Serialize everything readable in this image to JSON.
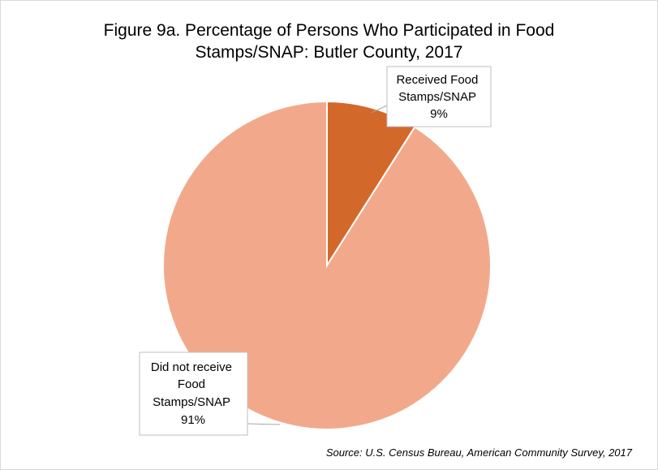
{
  "chart_data": {
    "type": "pie",
    "title_lines": [
      "Figure 9a. Percentage of Persons Who Participated in Food",
      "Stamps/SNAP: Butler County, 2017"
    ],
    "slices": [
      {
        "label_lines": [
          "Received Food",
          "Stamps/SNAP"
        ],
        "value": 9,
        "value_label": "9%",
        "color": "#d2692b"
      },
      {
        "label_lines": [
          "Did not receive",
          "Food",
          "Stamps/SNAP"
        ],
        "value": 91,
        "value_label": "91%",
        "color": "#f2a98b"
      }
    ],
    "start_angle": "12 o'clock",
    "direction": "clockwise",
    "slice_border_color": "#ffffff",
    "source": "Source: U.S. Census Bureau, American Community Survey, 2017"
  }
}
